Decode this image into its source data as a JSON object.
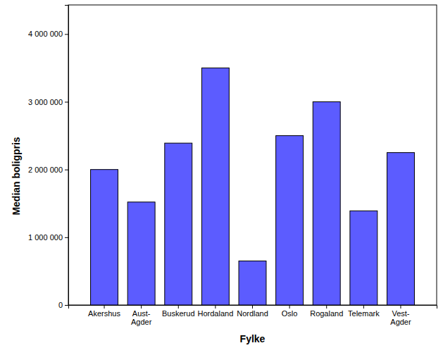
{
  "chart_data": {
    "type": "bar",
    "x_label": "Fylke",
    "y_label": "Median boligpris",
    "categories": [
      "Akershus",
      "Aust-Agder",
      "Buskerud",
      "Hordaland",
      "Nordland",
      "Oslo",
      "Rogaland",
      "Telemark",
      "Vest-Agder"
    ],
    "values": [
      2000000,
      1520000,
      2390000,
      3500000,
      650000,
      2500000,
      3000000,
      1390000,
      2250000
    ],
    "color": "#5c5cff",
    "ylim": [
      0,
      4430000
    ],
    "yticks": [
      0,
      {
        "value": 1000000,
        "label": "1 000 000"
      },
      {
        "value": 2000000,
        "label": "2 000 000"
      },
      {
        "value": 3000000,
        "label": "3 000 000"
      },
      {
        "value": 4000000,
        "label": "4 000 000"
      }
    ]
  }
}
